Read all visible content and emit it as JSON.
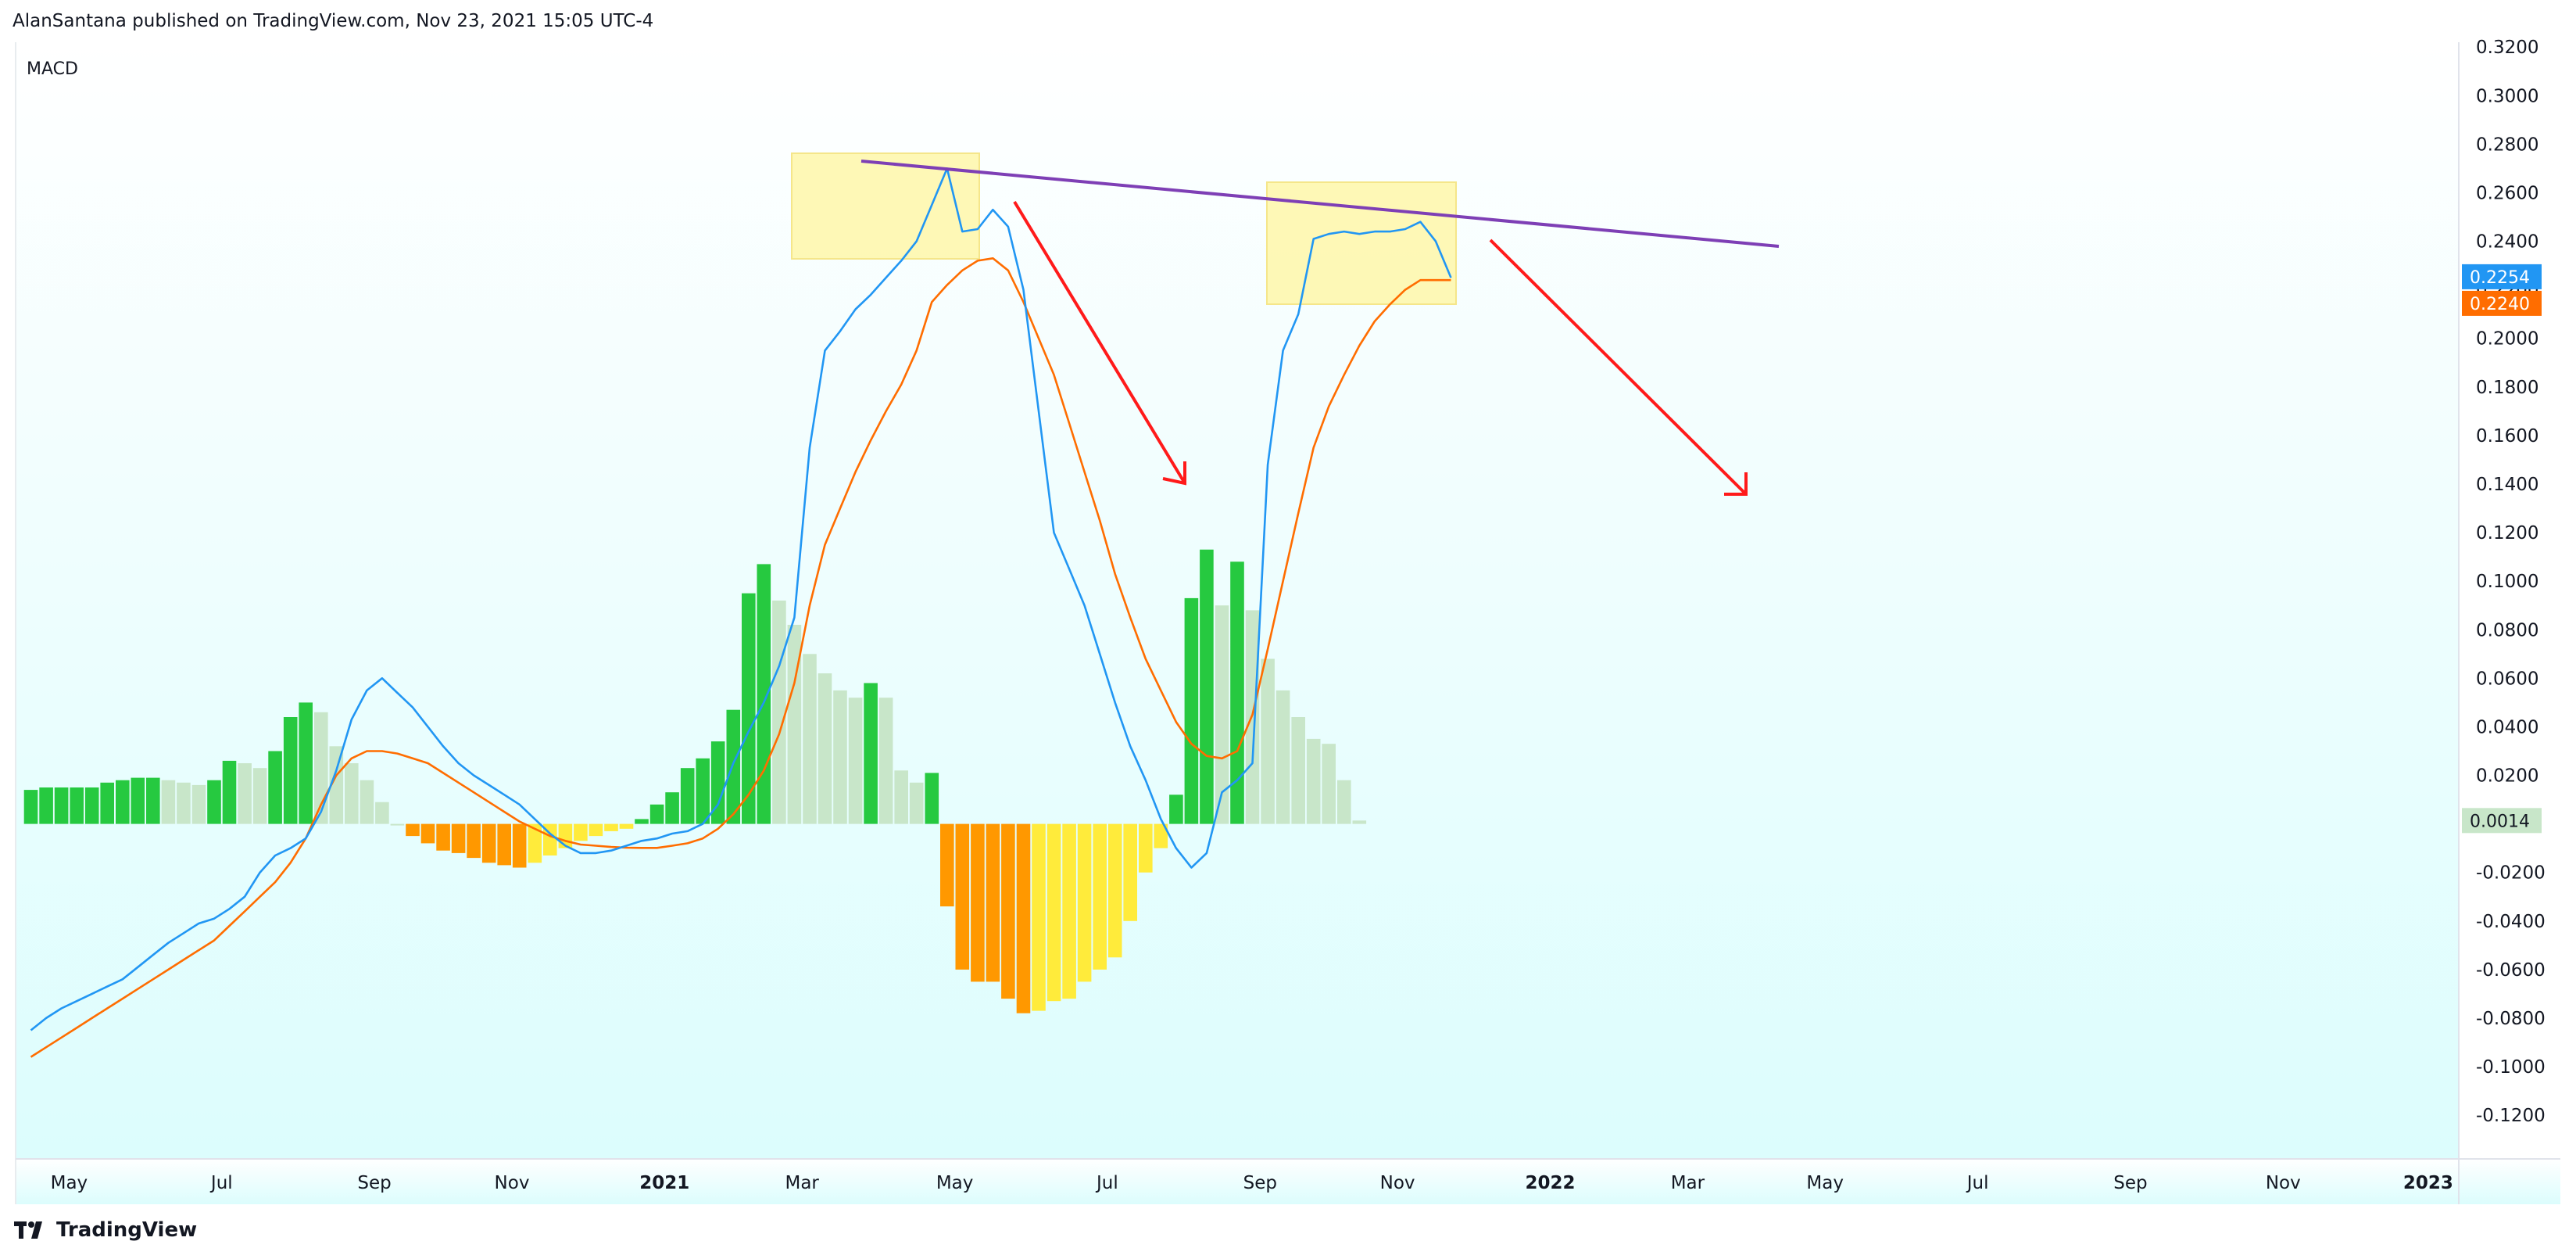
{
  "header": {
    "text": "AlanSantana published on TradingView.com, Nov 23, 2021 15:05 UTC-4"
  },
  "pane": {
    "label": "MACD"
  },
  "footer": {
    "brand": "TradingView",
    "logo_icon": "tradingview-logo-icon"
  },
  "colors": {
    "background_top": "#ffffff",
    "background_bottom": "#dcfdfd",
    "macd_line": "#2196f3",
    "signal_line": "#ff6d00",
    "hist_pos_rising": "#26c940",
    "hist_pos_falling": "#c8e6c9",
    "hist_neg_falling": "#ff9800",
    "hist_neg_rising": "#ffeb3b",
    "trendline": "#7e3fb5",
    "arrow": "#ff1a1a",
    "box_fill": "#fff59d",
    "tag_macd": "#2196f3",
    "tag_signal": "#ff6d00",
    "tag_hist": "#c8e6c9"
  },
  "chart_data": {
    "type": "line",
    "title": "MACD",
    "ylim": [
      -0.138,
      0.322
    ],
    "xlim": [
      -1,
      159
    ],
    "y_ticks": [
      "0.3200",
      "0.3000",
      "0.2800",
      "0.2600",
      "0.2400",
      "0.2200",
      "0.2000",
      "0.1800",
      "0.1600",
      "0.1400",
      "0.1200",
      "0.1000",
      "0.0800",
      "0.0600",
      "0.0400",
      "0.0200",
      "0.0000",
      "-0.0200",
      "-0.0400",
      "-0.0600",
      "-0.0800",
      "-0.1000",
      "-0.1200"
    ],
    "y_tick_values": [
      0.32,
      0.3,
      0.28,
      0.26,
      0.24,
      0.22,
      0.2,
      0.18,
      0.16,
      0.14,
      0.12,
      0.1,
      0.08,
      0.06,
      0.04,
      0.02,
      0.0,
      -0.02,
      -0.04,
      -0.06,
      -0.08,
      -0.1,
      -0.12
    ],
    "x_ticks": [
      {
        "label": "May",
        "i": 2.5,
        "bold": false
      },
      {
        "label": "Jul",
        "i": 12.5,
        "bold": false
      },
      {
        "label": "Sep",
        "i": 22.5,
        "bold": false
      },
      {
        "label": "Nov",
        "i": 31.5,
        "bold": false
      },
      {
        "label": "2021",
        "i": 41.5,
        "bold": true
      },
      {
        "label": "Mar",
        "i": 50.5,
        "bold": false
      },
      {
        "label": "May",
        "i": 60.5,
        "bold": false
      },
      {
        "label": "Jul",
        "i": 70.5,
        "bold": false
      },
      {
        "label": "Sep",
        "i": 80.5,
        "bold": false
      },
      {
        "label": "Nov",
        "i": 89.5,
        "bold": false
      },
      {
        "label": "2022",
        "i": 99.5,
        "bold": true
      },
      {
        "label": "Mar",
        "i": 108.5,
        "bold": false
      },
      {
        "label": "May",
        "i": 117.5,
        "bold": false
      },
      {
        "label": "Jul",
        "i": 127.5,
        "bold": false
      },
      {
        "label": "Sep",
        "i": 137.5,
        "bold": false
      },
      {
        "label": "Nov",
        "i": 147.5,
        "bold": false
      },
      {
        "label": "2023",
        "i": 157,
        "bold": true
      }
    ],
    "series": [
      {
        "key": "macd",
        "values": [
          -0.085,
          -0.08,
          -0.076,
          -0.073,
          -0.07,
          -0.067,
          -0.064,
          -0.059,
          -0.054,
          -0.049,
          -0.045,
          -0.041,
          -0.039,
          -0.035,
          -0.03,
          -0.02,
          -0.013,
          -0.01,
          -0.006,
          0.005,
          0.022,
          0.043,
          0.055,
          0.06,
          0.054,
          0.048,
          0.04,
          0.032,
          0.025,
          0.02,
          0.016,
          0.012,
          0.008,
          0.002,
          -0.004,
          -0.009,
          -0.012,
          -0.012,
          -0.011,
          -0.009,
          -0.007,
          -0.006,
          -0.004,
          -0.003,
          0.0,
          0.008,
          0.025,
          0.038,
          0.05,
          0.065,
          0.085,
          0.155,
          0.195,
          0.203,
          0.212,
          0.218,
          0.225,
          0.232,
          0.24,
          0.255,
          0.27,
          0.244,
          0.245,
          0.253,
          0.246,
          0.22,
          0.17,
          0.12,
          0.105,
          0.09,
          0.07,
          0.05,
          0.032,
          0.018,
          0.002,
          -0.01,
          -0.018,
          -0.012,
          0.013,
          0.018,
          0.025,
          0.148,
          0.195,
          0.21,
          0.241,
          0.243,
          0.244,
          0.243,
          0.244,
          0.244,
          0.245,
          0.248,
          0.24,
          0.225
        ],
        "color": "#2196f3"
      },
      {
        "key": "signal",
        "values": [
          -0.096,
          -0.092,
          -0.088,
          -0.084,
          -0.08,
          -0.076,
          -0.072,
          -0.068,
          -0.064,
          -0.06,
          -0.056,
          -0.052,
          -0.048,
          -0.042,
          -0.036,
          -0.03,
          -0.024,
          -0.016,
          -0.006,
          0.008,
          0.02,
          0.027,
          0.03,
          0.03,
          0.029,
          0.027,
          0.025,
          0.021,
          0.017,
          0.013,
          0.009,
          0.005,
          0.001,
          -0.002,
          -0.005,
          -0.007,
          -0.0085,
          -0.009,
          -0.0095,
          -0.0098,
          -0.0099,
          -0.0099,
          -0.009,
          -0.008,
          -0.006,
          -0.002,
          0.004,
          0.012,
          0.022,
          0.037,
          0.058,
          0.09,
          0.115,
          0.13,
          0.145,
          0.158,
          0.17,
          0.181,
          0.195,
          0.215,
          0.222,
          0.228,
          0.232,
          0.233,
          0.228,
          0.215,
          0.2,
          0.185,
          0.165,
          0.145,
          0.125,
          0.103,
          0.085,
          0.068,
          0.055,
          0.042,
          0.033,
          0.028,
          0.027,
          0.03,
          0.045,
          0.072,
          0.1,
          0.128,
          0.155,
          0.172,
          0.185,
          0.197,
          0.207,
          0.214,
          0.22,
          0.224,
          0.224,
          0.224
        ],
        "color": "#ff6d00"
      },
      {
        "key": "histogram",
        "values": [
          0.014,
          0.015,
          0.015,
          0.015,
          0.015,
          0.017,
          0.018,
          0.019,
          0.019,
          0.018,
          0.017,
          0.016,
          0.018,
          0.026,
          0.025,
          0.023,
          0.03,
          0.044,
          0.05,
          0.046,
          0.032,
          0.025,
          0.018,
          0.009,
          0.0,
          -0.005,
          -0.008,
          -0.011,
          -0.012,
          -0.014,
          -0.016,
          -0.017,
          -0.018,
          -0.016,
          -0.013,
          -0.01,
          -0.007,
          -0.005,
          -0.003,
          -0.002,
          0.002,
          0.008,
          0.013,
          0.023,
          0.027,
          0.034,
          0.047,
          0.095,
          0.107,
          0.092,
          0.082,
          0.07,
          0.062,
          0.055,
          0.052,
          0.058,
          0.052,
          0.022,
          0.017,
          0.021,
          -0.034,
          -0.06,
          -0.065,
          -0.065,
          -0.072,
          -0.078,
          -0.077,
          -0.073,
          -0.072,
          -0.065,
          -0.06,
          -0.055,
          -0.04,
          -0.02,
          -0.01,
          0.012,
          0.093,
          0.113,
          0.09,
          0.108,
          0.088,
          0.068,
          0.055,
          0.044,
          0.035,
          0.033,
          0.018,
          0.0014
        ],
        "color": "#26c940"
      }
    ],
    "last_values": {
      "macd": "0.2254",
      "signal": "0.2240",
      "histogram": "0.0014"
    }
  }
}
